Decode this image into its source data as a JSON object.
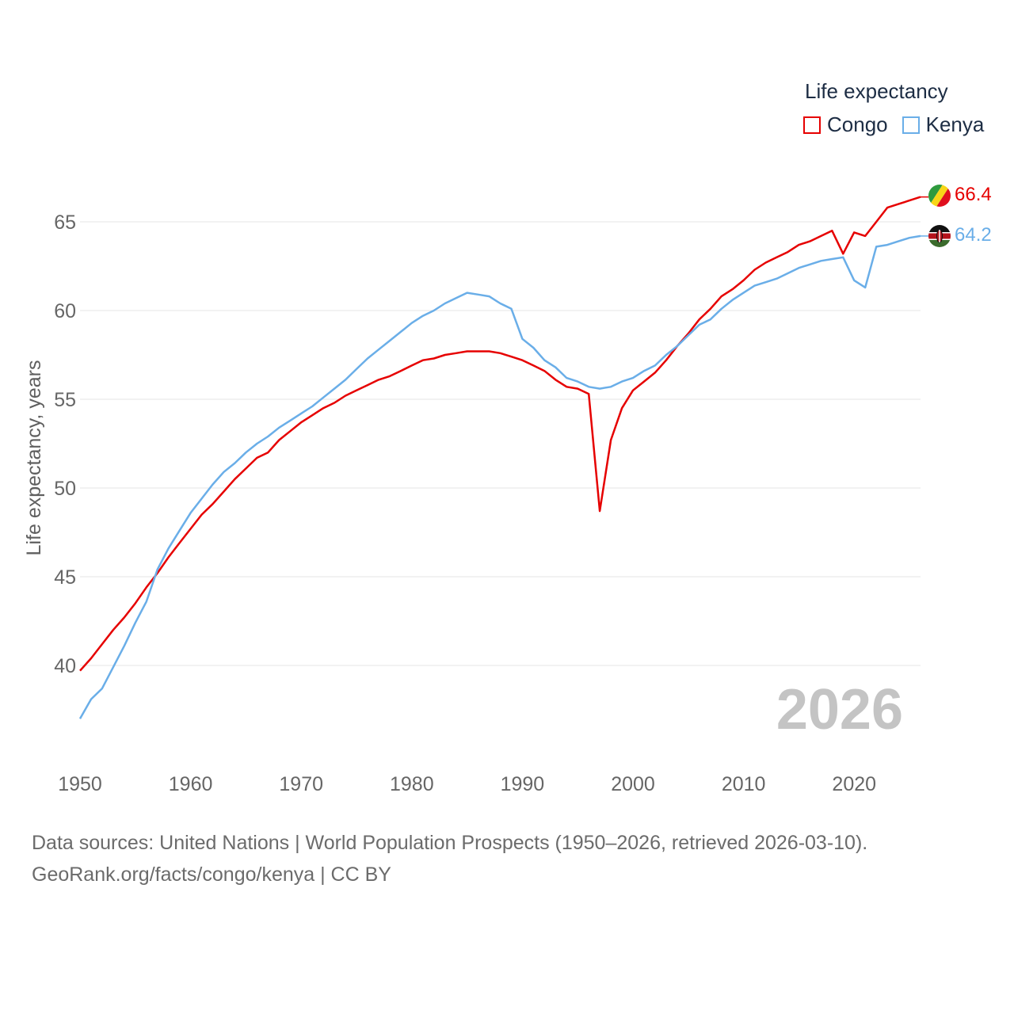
{
  "legend": {
    "title": "Life expectancy",
    "items": [
      {
        "label": "Congo",
        "color": "#e60000"
      },
      {
        "label": "Kenya",
        "color": "#6aaee8"
      }
    ]
  },
  "year_watermark": "2026",
  "end_labels": {
    "congo": {
      "value": "66.4",
      "color": "#e60000",
      "flag": "congo-flag-icon"
    },
    "kenya": {
      "value": "64.2",
      "color": "#6aaee8",
      "flag": "kenya-flag-icon"
    }
  },
  "footer": {
    "line1": "Data sources: United Nations | World Population Prospects (1950–2026, retrieved 2026-03-10).",
    "line2": "GeoRank.org/facts/congo/kenya | CC BY"
  },
  "chart_data": {
    "type": "line",
    "title": "Life expectancy",
    "xlabel": "",
    "ylabel": "Life expectancy, years",
    "xlim": [
      1950,
      2026
    ],
    "ylim": [
      35,
      68
    ],
    "x_ticks": [
      1950,
      1960,
      1970,
      1980,
      1990,
      2000,
      2010,
      2020
    ],
    "y_ticks": [
      40,
      45,
      50,
      55,
      60,
      65
    ],
    "grid": true,
    "legend_position": "top-right",
    "x": [
      1950,
      1951,
      1952,
      1953,
      1954,
      1955,
      1956,
      1957,
      1958,
      1959,
      1960,
      1961,
      1962,
      1963,
      1964,
      1965,
      1966,
      1967,
      1968,
      1969,
      1970,
      1971,
      1972,
      1973,
      1974,
      1975,
      1976,
      1977,
      1978,
      1979,
      1980,
      1981,
      1982,
      1983,
      1984,
      1985,
      1986,
      1987,
      1988,
      1989,
      1990,
      1991,
      1992,
      1993,
      1994,
      1995,
      1996,
      1997,
      1998,
      1999,
      2000,
      2001,
      2002,
      2003,
      2004,
      2005,
      2006,
      2007,
      2008,
      2009,
      2010,
      2011,
      2012,
      2013,
      2014,
      2015,
      2016,
      2017,
      2018,
      2019,
      2020,
      2021,
      2022,
      2023,
      2024,
      2025,
      2026
    ],
    "series": [
      {
        "name": "Congo",
        "color": "#e60000",
        "values": [
          39.7,
          40.4,
          41.2,
          42.0,
          42.7,
          43.5,
          44.4,
          45.2,
          46.1,
          46.9,
          47.7,
          48.5,
          49.1,
          49.8,
          50.5,
          51.1,
          51.7,
          52.0,
          52.7,
          53.2,
          53.7,
          54.1,
          54.5,
          54.8,
          55.2,
          55.5,
          55.8,
          56.1,
          56.3,
          56.6,
          56.9,
          57.2,
          57.3,
          57.5,
          57.6,
          57.7,
          57.7,
          57.7,
          57.6,
          57.4,
          57.2,
          56.9,
          56.6,
          56.1,
          55.7,
          55.6,
          55.3,
          48.7,
          52.7,
          54.5,
          55.5,
          56.0,
          56.5,
          57.2,
          58.0,
          58.7,
          59.5,
          60.1,
          60.8,
          61.2,
          61.7,
          62.3,
          62.7,
          63.0,
          63.3,
          63.7,
          63.9,
          64.2,
          64.5,
          63.2,
          64.4,
          64.2,
          65.0,
          65.8,
          66.0,
          66.2,
          66.4
        ]
      },
      {
        "name": "Kenya",
        "color": "#6aaee8",
        "values": [
          37.0,
          38.1,
          38.7,
          39.9,
          41.1,
          42.4,
          43.6,
          45.4,
          46.6,
          47.6,
          48.6,
          49.4,
          50.2,
          50.9,
          51.4,
          52.0,
          52.5,
          52.9,
          53.4,
          53.8,
          54.2,
          54.6,
          55.1,
          55.6,
          56.1,
          56.7,
          57.3,
          57.8,
          58.3,
          58.8,
          59.3,
          59.7,
          60.0,
          60.4,
          60.7,
          61.0,
          60.9,
          60.8,
          60.4,
          60.1,
          58.4,
          57.9,
          57.2,
          56.8,
          56.2,
          56.0,
          55.7,
          55.6,
          55.7,
          56.0,
          56.2,
          56.6,
          56.9,
          57.5,
          58.0,
          58.6,
          59.2,
          59.5,
          60.1,
          60.6,
          61.0,
          61.4,
          61.6,
          61.8,
          62.1,
          62.4,
          62.6,
          62.8,
          62.9,
          63.0,
          61.7,
          61.3,
          63.6,
          63.7,
          63.9,
          64.1,
          64.2
        ]
      }
    ]
  }
}
